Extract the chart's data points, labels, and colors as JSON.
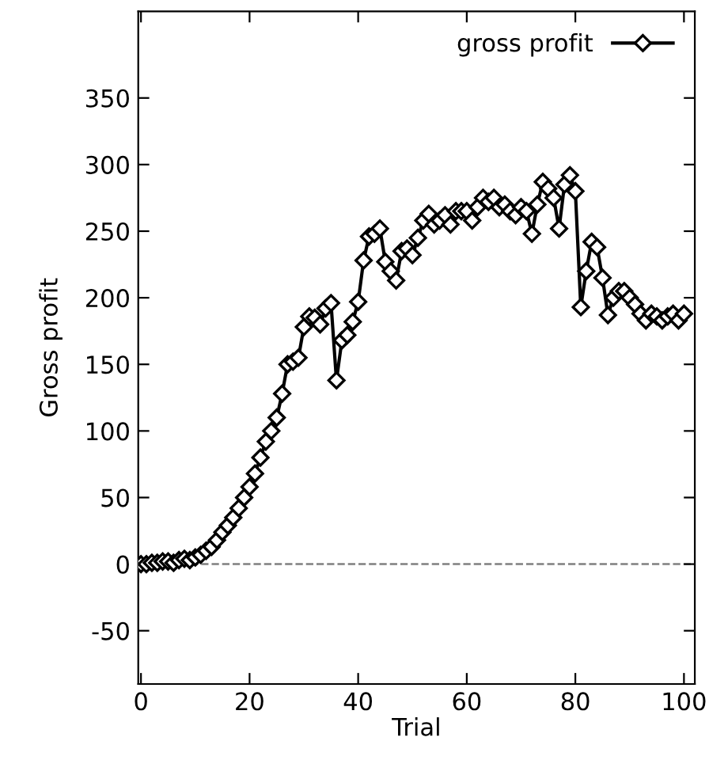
{
  "chart_data": {
    "type": "line",
    "xlabel": "Trial",
    "ylabel": "Gross profit",
    "x": [
      0,
      1,
      2,
      3,
      4,
      5,
      6,
      7,
      8,
      9,
      10,
      11,
      12,
      13,
      14,
      15,
      16,
      17,
      18,
      19,
      20,
      21,
      22,
      23,
      24,
      25,
      26,
      27,
      28,
      29,
      30,
      31,
      32,
      33,
      34,
      35,
      36,
      37,
      38,
      39,
      40,
      41,
      42,
      43,
      44,
      45,
      46,
      47,
      48,
      49,
      50,
      51,
      52,
      53,
      54,
      55,
      56,
      57,
      58,
      59,
      60,
      61,
      62,
      63,
      64,
      65,
      66,
      67,
      68,
      69,
      70,
      71,
      72,
      73,
      74,
      75,
      76,
      77,
      78,
      79,
      80,
      81,
      82,
      83,
      84,
      85,
      86,
      87,
      88,
      89,
      90,
      91,
      92,
      93,
      94,
      95,
      96,
      97,
      98,
      99,
      100
    ],
    "series": [
      {
        "name": "gross profit",
        "color": "#000000",
        "values": [
          0,
          0,
          1,
          1,
          2,
          2,
          1,
          3,
          4,
          3,
          5,
          7,
          10,
          13,
          18,
          24,
          29,
          35,
          42,
          50,
          58,
          68,
          80,
          92,
          100,
          110,
          128,
          150,
          152,
          155,
          178,
          186,
          185,
          180,
          192,
          196,
          138,
          168,
          172,
          182,
          197,
          228,
          246,
          248,
          252,
          227,
          220,
          213,
          235,
          237,
          232,
          245,
          258,
          263,
          255,
          258,
          262,
          255,
          265,
          265,
          265,
          258,
          268,
          275,
          272,
          275,
          268,
          270,
          265,
          262,
          268,
          265,
          248,
          270,
          287,
          282,
          275,
          252,
          285,
          292,
          280,
          193,
          220,
          242,
          238,
          215,
          187,
          200,
          205,
          205,
          200,
          195,
          188,
          183,
          188,
          186,
          183,
          186,
          188,
          183,
          188
        ]
      }
    ],
    "xlim": [
      -0.5,
      102
    ],
    "ylim": [
      -90,
      415
    ],
    "xticks": [
      0,
      20,
      40,
      60,
      80,
      100
    ],
    "yticks": [
      -50,
      0,
      50,
      100,
      150,
      200,
      250,
      300,
      350
    ],
    "ref_lines": [
      {
        "axis": "y",
        "value": 0,
        "color": "#808080",
        "line_style": "dashed"
      }
    ],
    "marker": "diamond",
    "line_style": "solid",
    "legend": "top right",
    "grid": false
  }
}
